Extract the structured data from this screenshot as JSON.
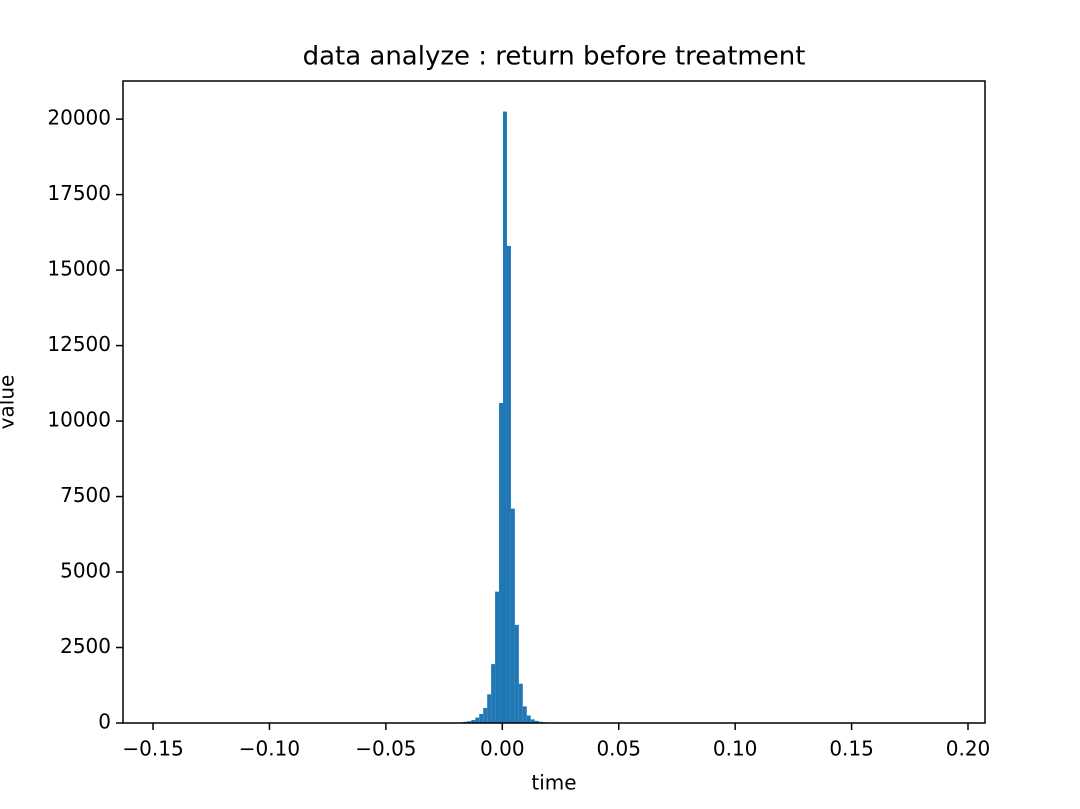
{
  "chart_data": {
    "type": "histogram",
    "title": "data analyze : return before treatment",
    "x_label": "time",
    "y_label": "value",
    "color": "#1f77b4",
    "bins": [
      -0.1461,
      -0.0201,
      -0.0184,
      -0.0167,
      -0.015,
      -0.0133,
      -0.0116,
      -0.0099,
      -0.0082,
      -0.0065,
      -0.0048,
      -0.0031,
      -0.0014,
      0.0003,
      0.002,
      0.0037,
      0.0054,
      0.0071,
      0.0088,
      0.0105,
      0.0122,
      0.0139,
      0.0156,
      0.0173,
      0.019,
      0.0207,
      0.0224,
      0.1905
    ],
    "values": [
      0,
      10,
      20,
      40,
      60,
      100,
      180,
      300,
      500,
      950,
      1950,
      4350,
      10600,
      20250,
      15800,
      7100,
      3250,
      1300,
      550,
      250,
      120,
      70,
      40,
      25,
      15,
      10,
      0
    ],
    "xlim": [
      -0.1629,
      0.2073
    ],
    "ylim": [
      0,
      21262.5
    ],
    "xticks": [
      {
        "value": -0.15,
        "label": "−0.15"
      },
      {
        "value": -0.1,
        "label": "−0.10"
      },
      {
        "value": -0.05,
        "label": "−0.05"
      },
      {
        "value": 0,
        "label": "0.00"
      },
      {
        "value": 0.05,
        "label": "0.05"
      },
      {
        "value": 0.1,
        "label": "0.10"
      },
      {
        "value": 0.15,
        "label": "0.15"
      },
      {
        "value": 0.2,
        "label": "0.20"
      }
    ],
    "yticks": [
      0,
      2500,
      5000,
      7500,
      10000,
      12500,
      15000,
      17500,
      20000
    ],
    "grid": false
  }
}
